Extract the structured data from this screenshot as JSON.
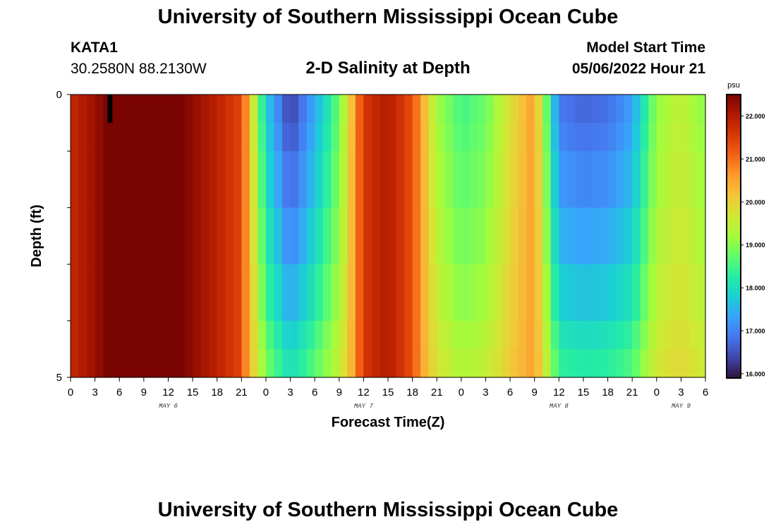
{
  "header": {
    "title": "University of Southern Mississippi Ocean Cube",
    "station": "KATA1",
    "coords": "30.2580N  88.2130W",
    "subtitle": "2-D Salinity at Depth",
    "model_start_label": "Model Start Time",
    "model_start_value": "05/06/2022 Hour 21",
    "footer_title": "University of Southern Mississippi Ocean Cube"
  },
  "chart_data": {
    "type": "heatmap",
    "title": "2-D Salinity at Depth",
    "xlabel": "Forecast Time(Z)",
    "ylabel": "Depth (ft)",
    "x_tick_labels": [
      "0",
      "3",
      "6",
      "9",
      "12",
      "15",
      "18",
      "21",
      "0",
      "3",
      "6",
      "9",
      "12",
      "15",
      "18",
      "21",
      "0",
      "3",
      "6",
      "9",
      "12",
      "15",
      "18",
      "21",
      "0",
      "3",
      "6"
    ],
    "x_hours": [
      0,
      3,
      6,
      9,
      12,
      15,
      18,
      21,
      24,
      27,
      30,
      33,
      36,
      39,
      42,
      45,
      48,
      51,
      54,
      57,
      60,
      63,
      66,
      69,
      72,
      75,
      78
    ],
    "date_labels": [
      {
        "text": "MAY 6",
        "hour": 12
      },
      {
        "text": "MAY 7",
        "hour": 36
      },
      {
        "text": "MAY 8",
        "hour": 60
      },
      {
        "text": "MAY 9",
        "hour": 75
      }
    ],
    "xlim": [
      0,
      78
    ],
    "y_tick_labels": [
      "0",
      "5"
    ],
    "ylim": [
      0,
      5
    ],
    "depths": [
      0.25,
      0.75,
      1.5,
      2.5,
      3.5,
      4.25,
      4.75
    ],
    "depth_edges": [
      0,
      0.5,
      1.0,
      2.0,
      3.0,
      4.0,
      4.5,
      5.0
    ],
    "hours": [
      0,
      3,
      6,
      9,
      12,
      15,
      18,
      21,
      24,
      27,
      30,
      33,
      36,
      39,
      42,
      45,
      48,
      51,
      54,
      57,
      60,
      63,
      66,
      69,
      72,
      75,
      78
    ],
    "salinity_surface": [
      21.8,
      22.2,
      22.9,
      23.0,
      22.7,
      22.3,
      21.9,
      21.4,
      17.8,
      16.3,
      17.4,
      18.8,
      21.6,
      22.0,
      21.3,
      19.2,
      18.5,
      18.8,
      19.8,
      20.6,
      16.9,
      16.7,
      16.8,
      17.3,
      19.1,
      19.5,
      19.0
    ],
    "depth_offset": [
      0.0,
      0.15,
      0.35,
      0.65,
      1.0,
      1.35,
      1.6
    ],
    "current_time_hour": 4.8,
    "colorbar": {
      "unit": "psu",
      "min": 15.9,
      "max": 22.5,
      "tick_labels": [
        "22.000",
        "21.000",
        "20.000",
        "19.000",
        "18.000",
        "17.000",
        "16.000"
      ],
      "tick_values": [
        22,
        21,
        20,
        19,
        18,
        17,
        16
      ],
      "stops": [
        "#30123b",
        "#4145ab",
        "#4675ed",
        "#39a2fc",
        "#1bcfd4",
        "#24eca6",
        "#61fc6c",
        "#a4fc3b",
        "#d1e834",
        "#f3c63a",
        "#fe9b2d",
        "#f36315",
        "#d93806",
        "#b11901",
        "#7a0402"
      ]
    }
  }
}
